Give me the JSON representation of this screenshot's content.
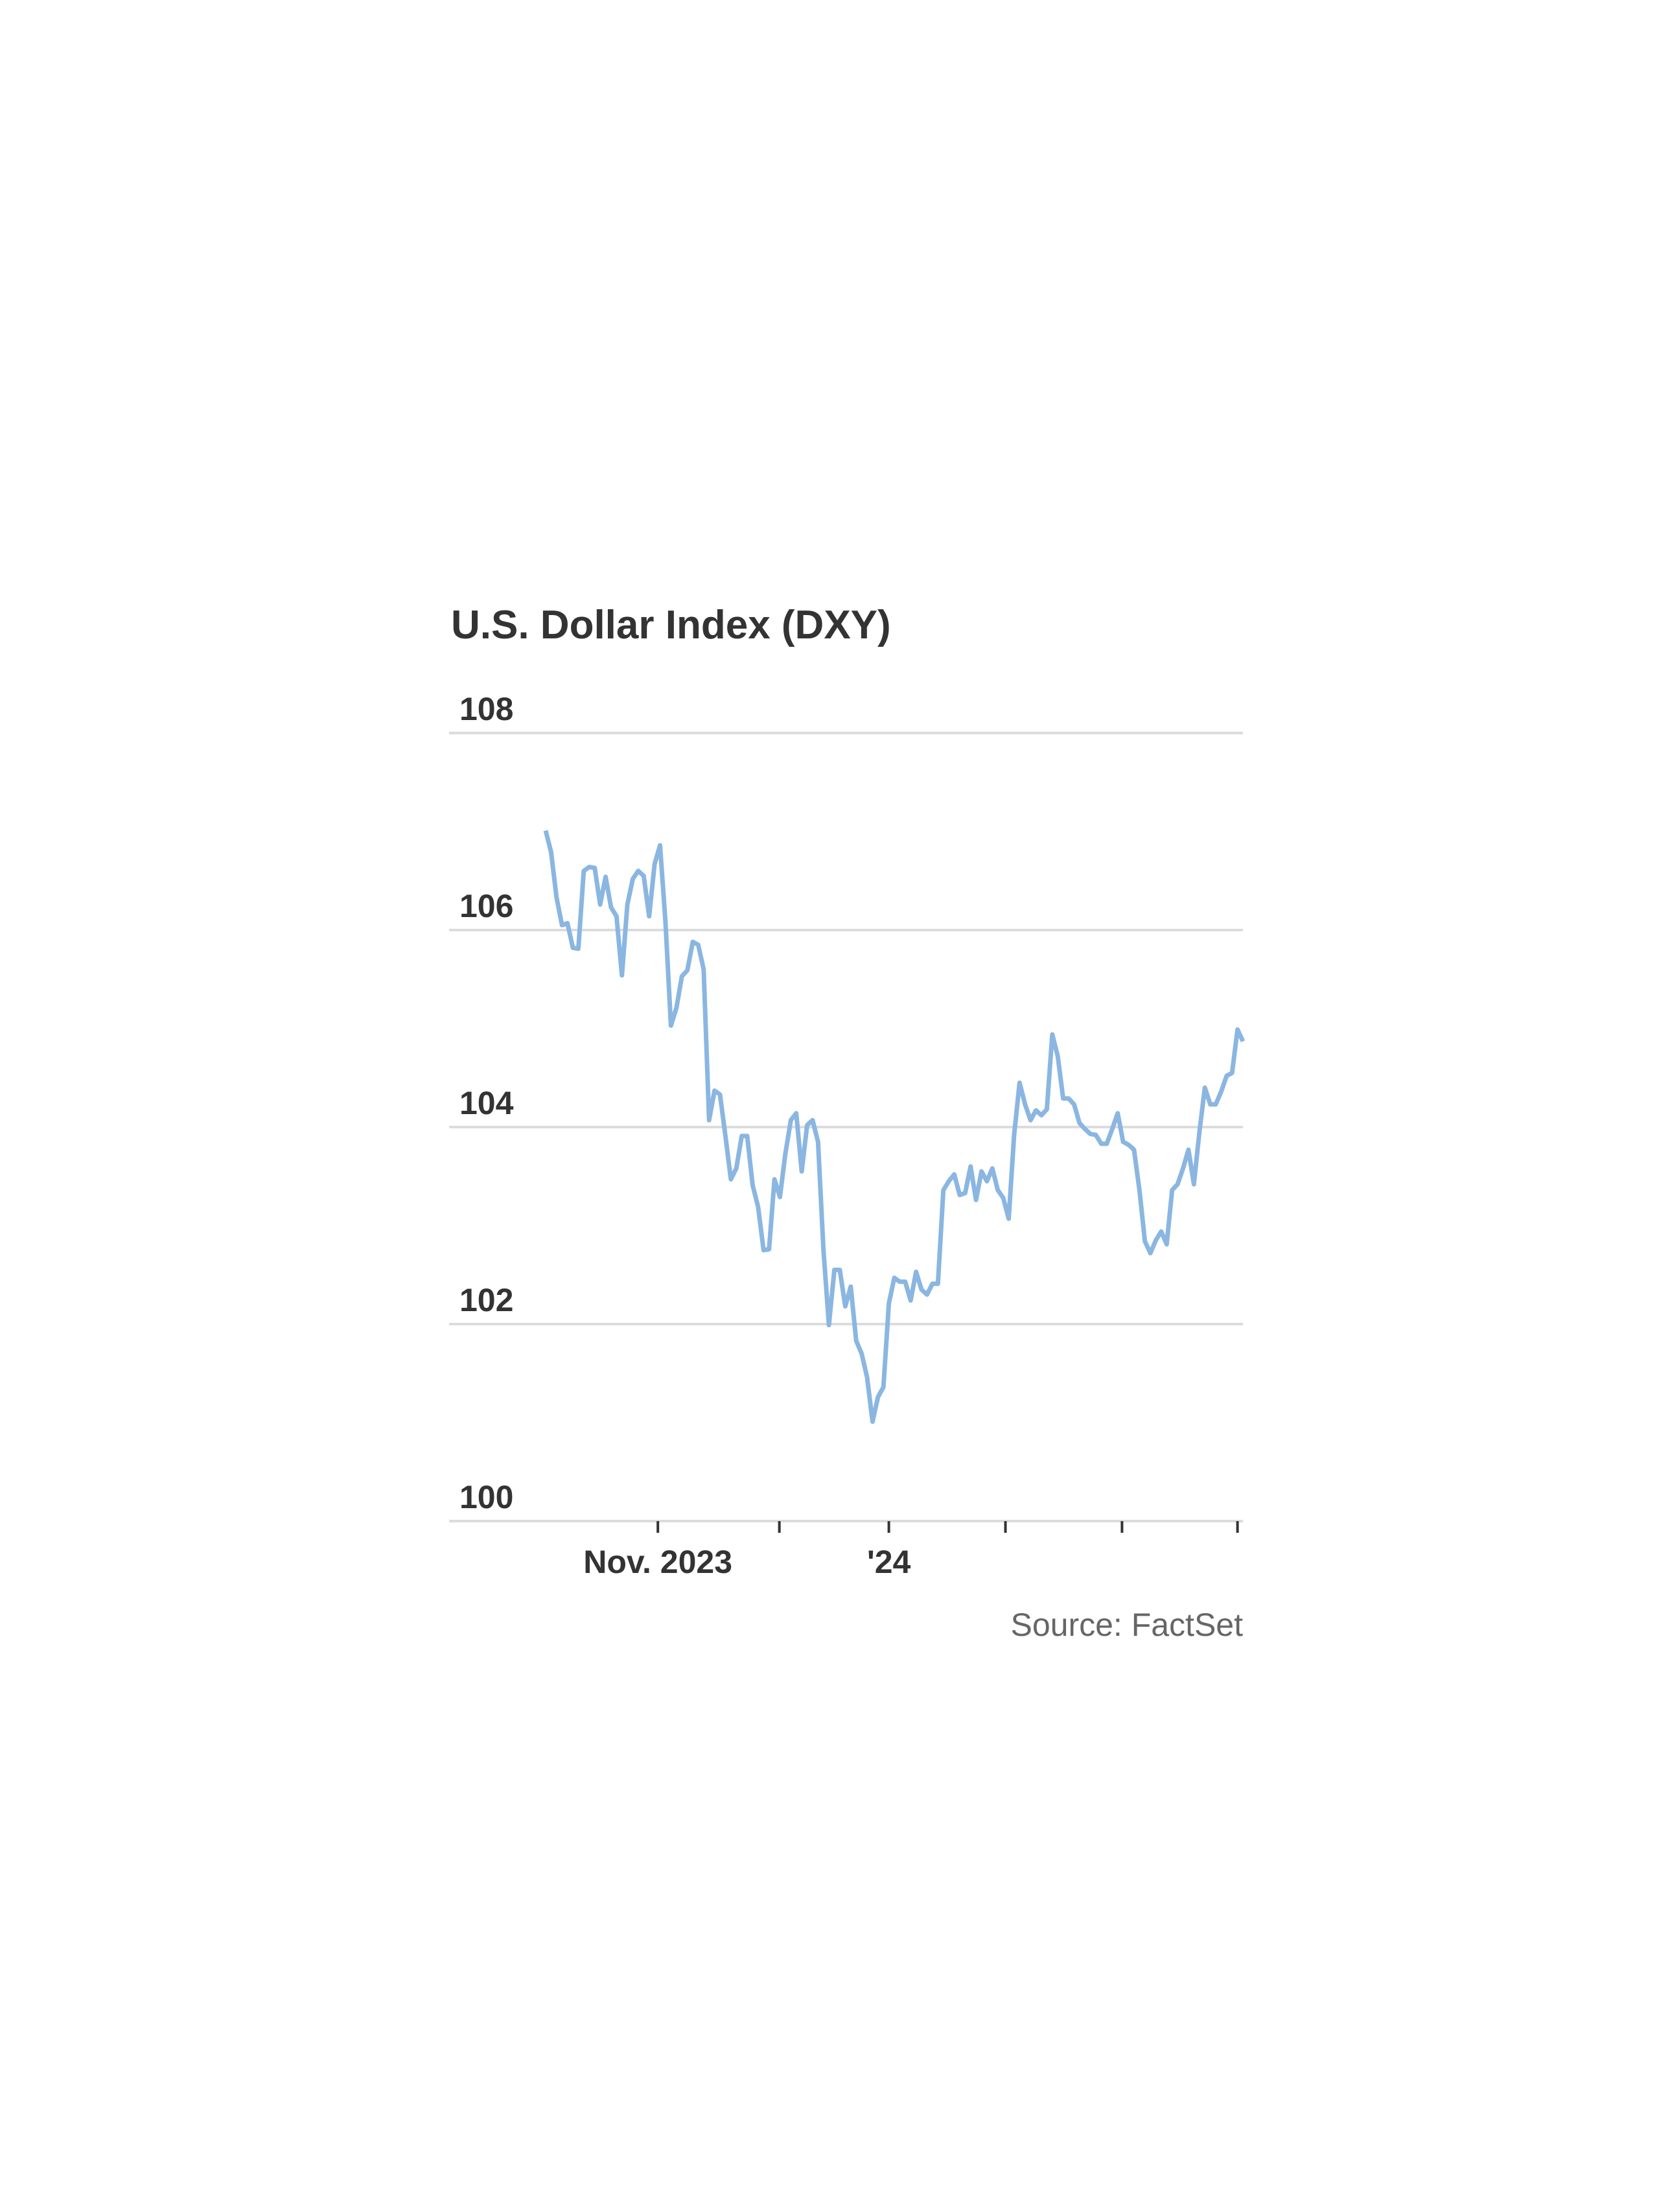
{
  "chart_data": {
    "type": "line",
    "title": "U.S. Dollar Index (DXY)",
    "source": "Source: FactSet",
    "color": "#8ab6e1",
    "grid": true,
    "values": [
      107.01,
      106.79,
      106.33,
      106.05,
      106.07,
      105.82,
      105.81,
      106.6,
      106.64,
      106.63,
      106.26,
      106.54,
      106.23,
      106.14,
      105.54,
      106.26,
      106.52,
      106.6,
      106.55,
      106.14,
      106.67,
      106.86,
      106.08,
      105.03,
      105.21,
      105.53,
      105.59,
      105.88,
      105.85,
      105.6,
      104.07,
      104.37,
      104.33,
      103.91,
      103.47,
      103.58,
      103.91,
      103.91,
      103.41,
      103.19,
      102.75,
      102.76,
      103.47,
      103.29,
      103.73,
      104.07,
      104.14,
      103.55,
      104.02,
      104.07,
      103.85,
      102.75,
      101.99,
      102.55,
      102.55,
      102.18,
      102.38,
      101.83,
      101.7,
      101.46,
      101.01,
      101.26,
      101.36,
      102.21,
      102.47,
      102.43,
      102.43,
      102.24,
      102.53,
      102.35,
      102.3,
      102.41,
      102.41,
      103.36,
      103.45,
      103.52,
      103.31,
      103.33,
      103.6,
      103.26,
      103.55,
      103.45,
      103.58,
      103.36,
      103.28,
      103.07,
      103.92,
      104.45,
      104.23,
      104.07,
      104.17,
      104.12,
      104.18,
      104.94,
      104.72,
      104.29,
      104.29,
      104.23,
      104.04,
      103.98,
      103.93,
      103.92,
      103.83,
      103.83,
      103.98,
      104.14,
      103.85,
      103.82,
      103.77,
      103.36,
      102.84,
      102.72,
      102.85,
      102.94,
      102.81,
      103.36,
      103.42,
      103.58,
      103.77,
      103.42,
      103.95,
      104.4,
      104.23,
      104.23,
      104.36,
      104.52,
      104.55,
      104.99,
      104.87
    ],
    "xlim": [
      0,
      128
    ],
    "xticks": [
      {
        "value": 20.6,
        "label": "Nov. 2023"
      },
      {
        "value": 42.9,
        "label": null
      },
      {
        "value": 63.0,
        "label": "'24"
      },
      {
        "value": 84.4,
        "label": null
      },
      {
        "value": 105.8,
        "label": null
      },
      {
        "value": 127.0,
        "label": null
      }
    ],
    "ylim": [
      100,
      108
    ],
    "yticks": [
      100,
      102,
      104,
      106,
      108
    ]
  }
}
